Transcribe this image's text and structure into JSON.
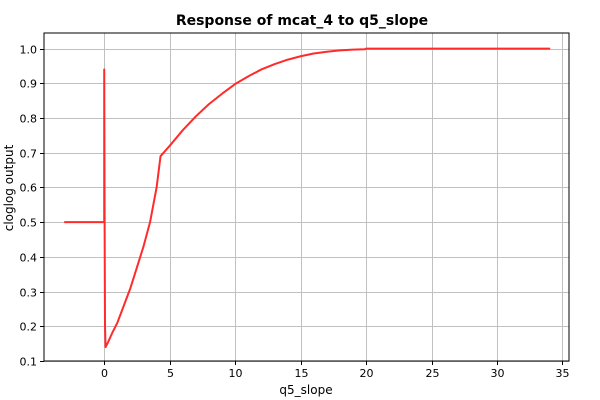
{
  "chart_data": {
    "type": "line",
    "title": "Response of mcat_4 to q5_slope",
    "xlabel": "q5_slope",
    "ylabel": "cloglog output",
    "xlim": [
      -4.6,
      35.5
    ],
    "ylim": [
      0.1,
      1.045
    ],
    "xticks": [
      0,
      5,
      10,
      15,
      20,
      25,
      30,
      35
    ],
    "yticks": [
      0.1,
      0.2,
      0.3,
      0.4,
      0.5,
      0.6,
      0.7,
      0.8,
      0.9,
      1.0
    ],
    "xtick_labels": [
      "0",
      "5",
      "10",
      "15",
      "20",
      "25",
      "30",
      "35"
    ],
    "ytick_labels": [
      "0.1",
      "0.2",
      "0.3",
      "0.4",
      "0.5",
      "0.6",
      "0.7",
      "0.8",
      "0.9",
      "1.0"
    ],
    "grid": true,
    "series": [
      {
        "color": "#ff2b2b",
        "x": [
          -3.0,
          -0.1,
          0.0,
          0.0,
          0.03,
          0.06,
          0.1,
          0.3,
          0.6,
          1.0,
          1.5,
          2.0,
          2.5,
          3.0,
          3.5,
          4.0,
          4.3,
          5.0,
          6.0,
          7.0,
          8.0,
          9.0,
          10.0,
          11.0,
          12.0,
          13.0,
          14.0,
          15.0,
          16.0,
          17.0,
          18.0,
          19.0,
          19.9,
          20.0,
          22.0,
          25.0,
          30.0,
          34.0
        ],
        "y": [
          0.5,
          0.5,
          0.5,
          0.94,
          0.5,
          0.2,
          0.14,
          0.155,
          0.18,
          0.21,
          0.26,
          0.31,
          0.37,
          0.43,
          0.5,
          0.6,
          0.69,
          0.72,
          0.765,
          0.805,
          0.84,
          0.87,
          0.898,
          0.92,
          0.94,
          0.955,
          0.968,
          0.978,
          0.986,
          0.991,
          0.995,
          0.997,
          0.998,
          1.0,
          1.0,
          1.0,
          1.0,
          1.0
        ]
      }
    ],
    "style": {
      "background": "#ffffff",
      "plot_background": "#ffffff",
      "grid_color": "#c0c0c0",
      "axis_color": "#000000"
    }
  }
}
